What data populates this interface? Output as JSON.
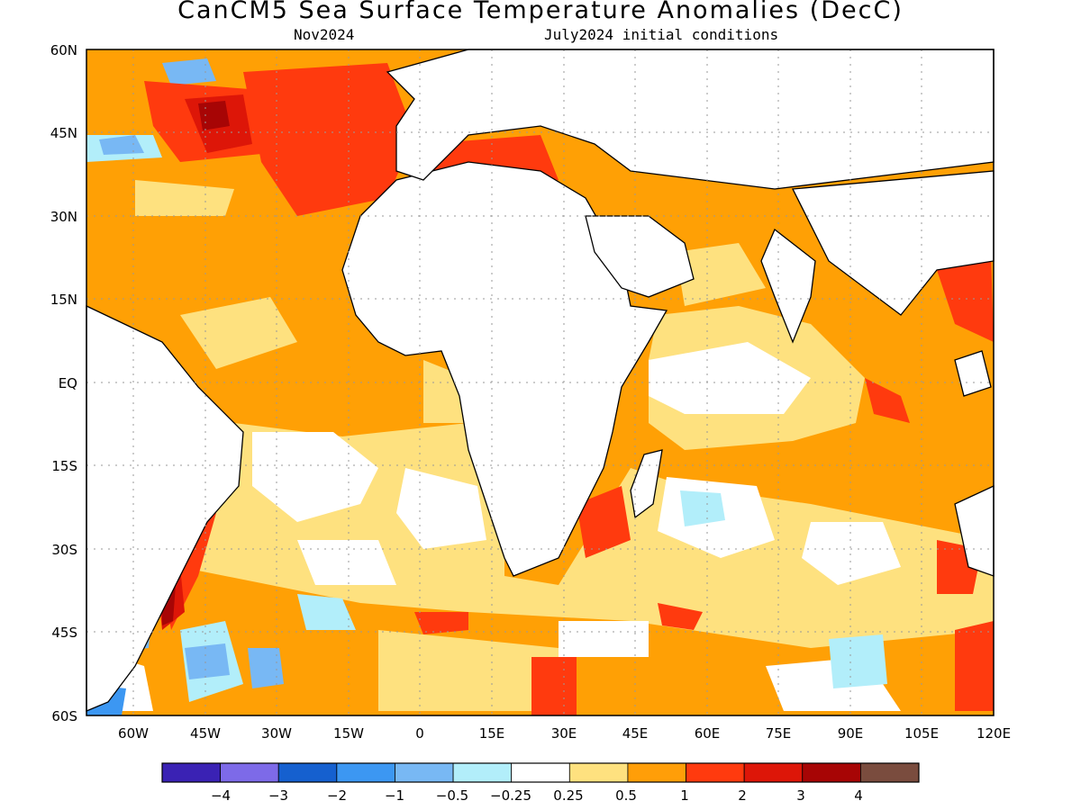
{
  "title": "CanCM5 Sea Surface Temperature Anomalies (DecC)",
  "subtitle_left": "Nov2024",
  "subtitle_right": "July2024 initial conditions",
  "map": {
    "lon_range": [
      -70,
      120
    ],
    "lat_range": [
      -60,
      60
    ],
    "lat_labels": [
      "60N",
      "45N",
      "30N",
      "15N",
      "EQ",
      "15S",
      "30S",
      "45S",
      "60S"
    ],
    "lon_labels": [
      "60W",
      "45W",
      "30W",
      "15W",
      "0",
      "15E",
      "30E",
      "45E",
      "60E",
      "75E",
      "90E",
      "105E",
      "120E"
    ]
  },
  "colorbar": {
    "labels": [
      "−4",
      "−3",
      "−2",
      "−1",
      "−0.5",
      "−0.25",
      "0.25",
      "0.5",
      "1",
      "2",
      "3",
      "4"
    ],
    "colors": [
      "#3a22b4",
      "#7d6ae8",
      "#1560cf",
      "#3c97f2",
      "#78b8f4",
      "#b2eefa",
      "#ffffff",
      "#fee17f",
      "#ff9e08",
      "#ff3a0e",
      "#dd1608",
      "#a70505",
      "#7a4c3e"
    ]
  },
  "palette": {
    "ocean_base": "#ffa005",
    "light": "#fee17f",
    "white": "#ffffff",
    "red": "#ff3a0e",
    "darkred": "#dd1608",
    "maroon": "#a70505",
    "cyan": "#b2eefa",
    "lightblue": "#78b8f4",
    "blue": "#3c97f2"
  }
}
